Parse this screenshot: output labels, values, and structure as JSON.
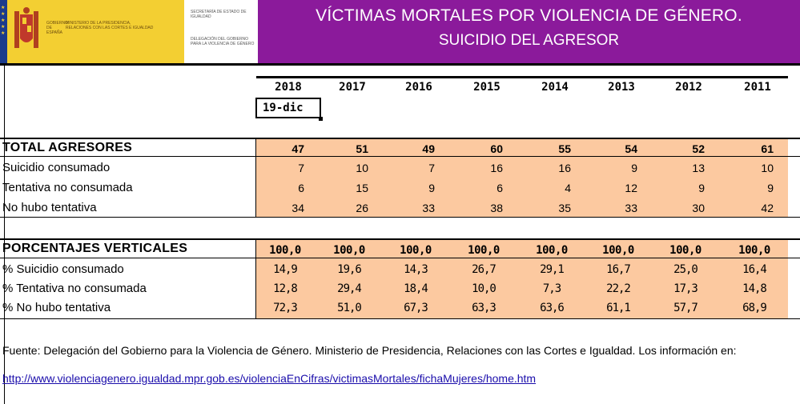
{
  "header": {
    "gov_label": "GOBIERNO DE ESPAÑA",
    "ministry_label": "MINISTERIO DE LA PRESIDENCIA, RELACIONES CON LAS CORTES E IGUALDAD",
    "state_secretary": "SECRETARÍA DE ESTADO DE IGUALDAD",
    "delegation": "DELEGACIÓN DEL GOBIERNO PARA LA VIOLENCIA DE GÉNERO",
    "title_line1": "VÍCTIMAS MORTALES POR VIOLENCIA DE GÉNERO.",
    "title_line2": "SUICIDIO DEL AGRESOR",
    "brand_color": "#8b1a9b"
  },
  "years": [
    "2018",
    "2017",
    "2016",
    "2015",
    "2014",
    "2013",
    "2012",
    "2011"
  ],
  "date_label": "19-dic",
  "counts": {
    "total_label": "TOTAL AGRESORES",
    "total": [
      47,
      51,
      49,
      60,
      55,
      54,
      52,
      61
    ],
    "rows": [
      {
        "label": "Suicidio consumado",
        "values": [
          7,
          10,
          7,
          16,
          16,
          9,
          13,
          10
        ]
      },
      {
        "label": "Tentativa no consumada",
        "values": [
          6,
          15,
          9,
          6,
          4,
          12,
          9,
          9
        ]
      },
      {
        "label": "No hubo tentativa",
        "values": [
          34,
          26,
          33,
          38,
          35,
          33,
          30,
          42
        ]
      }
    ]
  },
  "percentages": {
    "total_label": "PORCENTAJES VERTICALES",
    "total": [
      "100,0",
      "100,0",
      "100,0",
      "100,0",
      "100,0",
      "100,0",
      "100,0",
      "100,0"
    ],
    "rows": [
      {
        "label": "% Suicidio consumado",
        "values": [
          "14,9",
          "19,6",
          "14,3",
          "26,7",
          "29,1",
          "16,7",
          "25,0",
          "16,4"
        ]
      },
      {
        "label": "% Tentativa no consumada",
        "values": [
          "12,8",
          "29,4",
          "18,4",
          "10,0",
          "7,3",
          "22,2",
          "17,3",
          "14,8"
        ]
      },
      {
        "label": "% No hubo tentativa",
        "values": [
          "72,3",
          "51,0",
          "67,3",
          "63,3",
          "63,6",
          "61,1",
          "57,7",
          "68,9"
        ]
      }
    ]
  },
  "footer": {
    "source_text": "Fuente: Delegación del Gobierno para la Violencia de Género. Ministerio de Presidencia, Relaciones con las Cortes e Igualdad. Los información en:",
    "link": "http://www.violenciagenero.igualdad.mpr.gob.es/violenciaEnCifras/victimasMortales/fichaMujeres/home.htm"
  },
  "colors": {
    "cell_fill": "#fcc9a0",
    "link": "#1a0dab"
  }
}
